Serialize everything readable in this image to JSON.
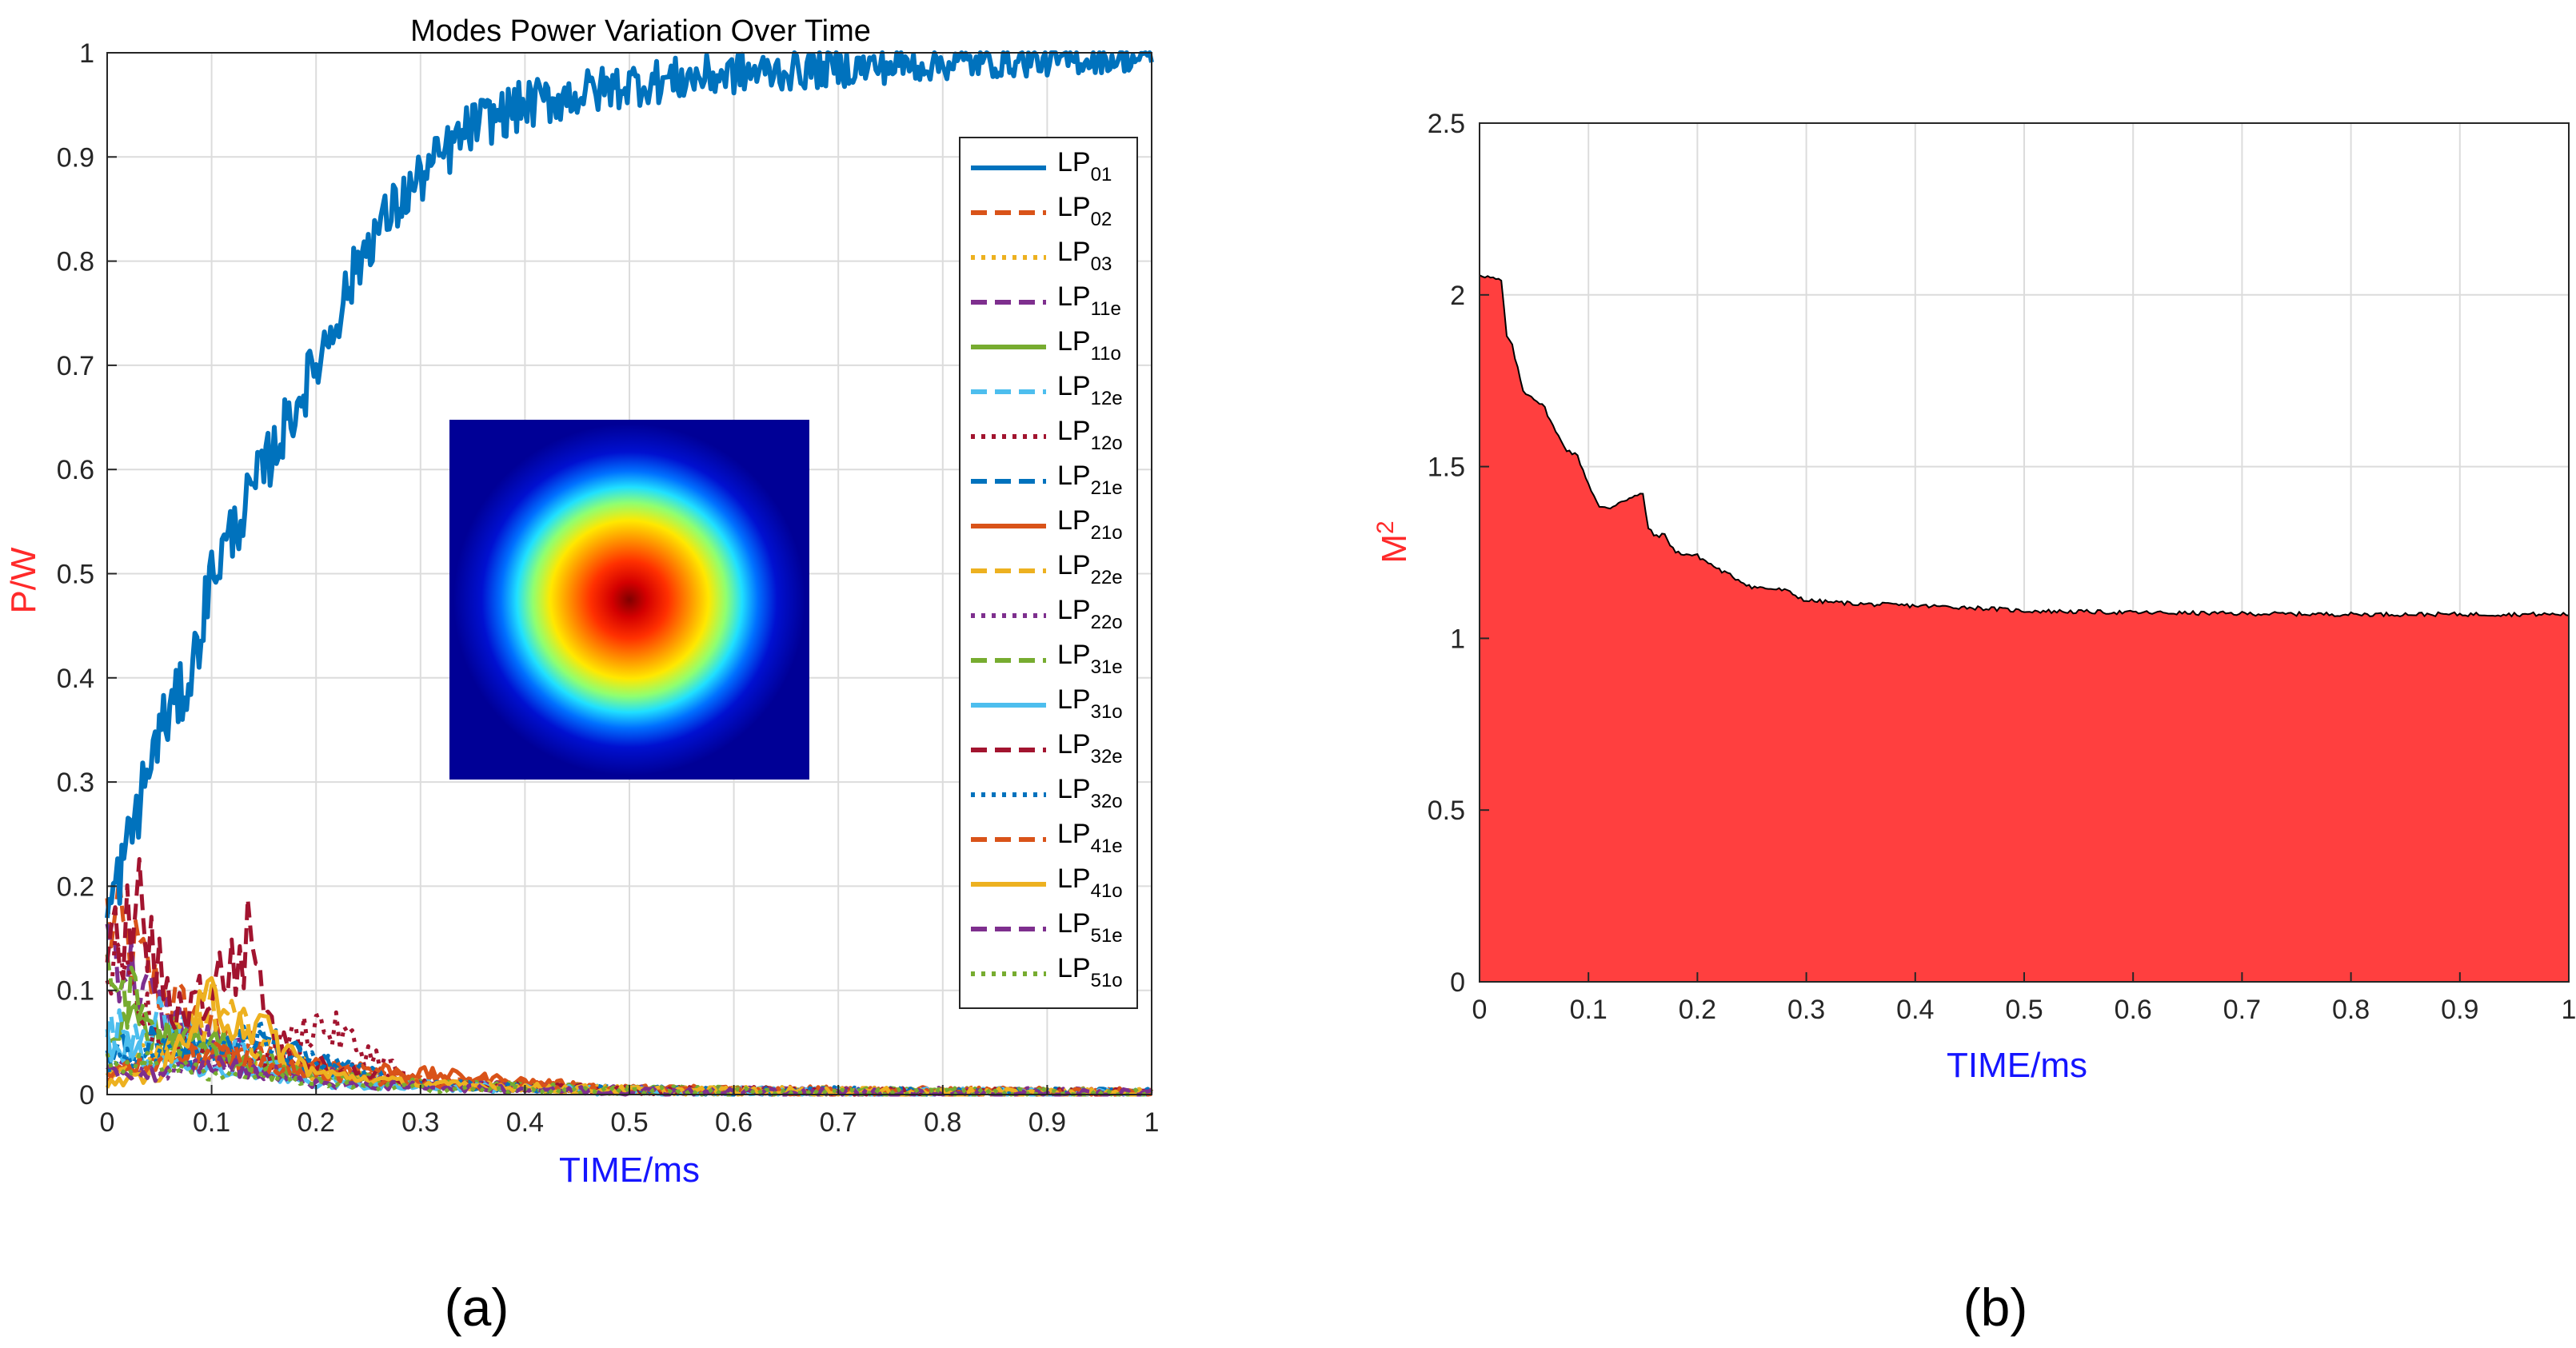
{
  "chart_data": [
    {
      "type": "line",
      "panel_label": "(a)",
      "title": "Modes Power Variation Over Time",
      "xlabel": "TIME/ms",
      "ylabel": "P/W",
      "xlim": [
        0,
        1
      ],
      "ylim": [
        0,
        1
      ],
      "xticks": [
        0,
        0.1,
        0.2,
        0.3,
        0.4,
        0.5,
        0.6,
        0.7,
        0.8,
        0.9,
        1
      ],
      "yticks": [
        0,
        0.1,
        0.2,
        0.3,
        0.4,
        0.5,
        0.6,
        0.7,
        0.8,
        0.9,
        1
      ],
      "xtick_labels": [
        "0",
        "0.1",
        "0.2",
        "0.3",
        "0.4",
        "0.5",
        "0.6",
        "0.7",
        "0.8",
        "0.9",
        "1"
      ],
      "ytick_labels": [
        "0",
        "0.1",
        "0.2",
        "0.3",
        "0.4",
        "0.5",
        "0.6",
        "0.7",
        "0.8",
        "0.9",
        "1"
      ],
      "grid": true,
      "legend_position": "right",
      "inset": "beam intensity profile (LP01, jet colormap)",
      "series": [
        {
          "name": "LP",
          "sub": "01",
          "color": "#0072BD",
          "dash": "solid",
          "x": [
            0,
            0.02,
            0.05,
            0.08,
            0.1,
            0.15,
            0.2,
            0.25,
            0.3,
            0.35,
            0.4,
            0.45,
            0.5,
            0.6,
            0.7,
            0.8,
            0.9,
            1.0
          ],
          "values": [
            0.17,
            0.24,
            0.35,
            0.4,
            0.5,
            0.6,
            0.7,
            0.82,
            0.88,
            0.93,
            0.95,
            0.96,
            0.97,
            0.98,
            0.985,
            0.99,
            0.992,
            0.995
          ]
        },
        {
          "name": "LP",
          "sub": "02",
          "color": "#D95319",
          "dash": "dash",
          "x": [
            0,
            0.05,
            0.1,
            0.15,
            0.2,
            0.3,
            0.5,
            1.0
          ],
          "values": [
            0.17,
            0.1,
            0.06,
            0.04,
            0.03,
            0.015,
            0.005,
            0.002
          ]
        },
        {
          "name": "LP",
          "sub": "03",
          "color": "#EDB120",
          "dash": "dot",
          "x": [
            0,
            0.05,
            0.1,
            0.15,
            0.2,
            0.3,
            0.5,
            1.0
          ],
          "values": [
            0.03,
            0.05,
            0.04,
            0.03,
            0.02,
            0.01,
            0.004,
            0.002
          ]
        },
        {
          "name": "LP",
          "sub": "11e",
          "color": "#7E2F8E",
          "dash": "dash",
          "x": [
            0,
            0.05,
            0.1,
            0.15,
            0.2,
            0.3,
            0.5,
            1.0
          ],
          "values": [
            0.15,
            0.08,
            0.05,
            0.03,
            0.02,
            0.01,
            0.004,
            0.001
          ]
        },
        {
          "name": "LP",
          "sub": "11o",
          "color": "#77AC30",
          "dash": "solid",
          "x": [
            0,
            0.05,
            0.1,
            0.15,
            0.2,
            0.3,
            0.5,
            1.0
          ],
          "values": [
            0.08,
            0.06,
            0.05,
            0.03,
            0.02,
            0.01,
            0.004,
            0.002
          ]
        },
        {
          "name": "LP",
          "sub": "12e",
          "color": "#4DBEEE",
          "dash": "dash",
          "x": [
            0,
            0.05,
            0.1,
            0.15,
            0.2,
            0.3,
            0.5,
            1.0
          ],
          "values": [
            0.06,
            0.07,
            0.05,
            0.03,
            0.02,
            0.01,
            0.004,
            0.001
          ]
        },
        {
          "name": "LP",
          "sub": "12o",
          "color": "#A2142F",
          "dash": "dot",
          "x": [
            0,
            0.05,
            0.1,
            0.15,
            0.2,
            0.3,
            0.5,
            1.0
          ],
          "values": [
            0.12,
            0.06,
            0.04,
            0.03,
            0.07,
            0.01,
            0.004,
            0.001
          ]
        },
        {
          "name": "LP",
          "sub": "21e",
          "color": "#0072BD",
          "dash": "dash",
          "x": [
            0,
            0.05,
            0.1,
            0.15,
            0.2,
            0.3,
            0.5,
            1.0
          ],
          "values": [
            0.04,
            0.05,
            0.04,
            0.05,
            0.03,
            0.01,
            0.004,
            0.002
          ]
        },
        {
          "name": "LP",
          "sub": "21o",
          "color": "#D95319",
          "dash": "solid",
          "x": [
            0,
            0.05,
            0.1,
            0.15,
            0.2,
            0.3,
            0.5,
            1.0
          ],
          "values": [
            0.02,
            0.03,
            0.04,
            0.02,
            0.03,
            0.02,
            0.005,
            0.002
          ]
        },
        {
          "name": "LP",
          "sub": "22e",
          "color": "#EDB120",
          "dash": "dash",
          "x": [
            0,
            0.05,
            0.1,
            0.15,
            0.2,
            0.3,
            0.5,
            1.0
          ],
          "values": [
            0.02,
            0.04,
            0.08,
            0.05,
            0.02,
            0.01,
            0.004,
            0.001
          ]
        },
        {
          "name": "LP",
          "sub": "22o",
          "color": "#7E2F8E",
          "dash": "dot",
          "x": [
            0,
            0.05,
            0.1,
            0.15,
            0.2,
            0.3,
            0.5,
            1.0
          ],
          "values": [
            0.03,
            0.02,
            0.03,
            0.02,
            0.02,
            0.01,
            0.004,
            0.002
          ]
        },
        {
          "name": "LP",
          "sub": "31e",
          "color": "#77AC30",
          "dash": "dash",
          "x": [
            0,
            0.05,
            0.1,
            0.15,
            0.2,
            0.3,
            0.5,
            1.0
          ],
          "values": [
            0.12,
            0.06,
            0.04,
            0.02,
            0.02,
            0.01,
            0.004,
            0.001
          ]
        },
        {
          "name": "LP",
          "sub": "31o",
          "color": "#4DBEEE",
          "dash": "solid",
          "x": [
            0,
            0.05,
            0.1,
            0.15,
            0.2,
            0.3,
            0.5,
            1.0
          ],
          "values": [
            0.05,
            0.03,
            0.02,
            0.02,
            0.01,
            0.008,
            0.003,
            0.001
          ]
        },
        {
          "name": "LP",
          "sub": "32e",
          "color": "#A2142F",
          "dash": "dash",
          "x": [
            0,
            0.03,
            0.06,
            0.1,
            0.14,
            0.16,
            0.2,
            0.3,
            0.5,
            1.0
          ],
          "values": [
            0.12,
            0.18,
            0.08,
            0.1,
            0.15,
            0.05,
            0.03,
            0.01,
            0.004,
            0.001
          ]
        },
        {
          "name": "LP",
          "sub": "32o",
          "color": "#0072BD",
          "dash": "dot",
          "x": [
            0,
            0.05,
            0.1,
            0.15,
            0.2,
            0.3,
            0.5,
            1.0
          ],
          "values": [
            0.03,
            0.04,
            0.03,
            0.06,
            0.03,
            0.01,
            0.004,
            0.002
          ]
        },
        {
          "name": "LP",
          "sub": "41e",
          "color": "#D95319",
          "dash": "dash",
          "x": [
            0,
            0.05,
            0.1,
            0.15,
            0.2,
            0.3,
            0.5,
            1.0
          ],
          "values": [
            0.02,
            0.03,
            0.04,
            0.03,
            0.02,
            0.01,
            0.004,
            0.001
          ]
        },
        {
          "name": "LP",
          "sub": "41o",
          "color": "#EDB120",
          "dash": "solid",
          "x": [
            0,
            0.05,
            0.1,
            0.15,
            0.2,
            0.3,
            0.5,
            1.0
          ],
          "values": [
            0.01,
            0.02,
            0.09,
            0.06,
            0.02,
            0.01,
            0.004,
            0.001
          ]
        },
        {
          "name": "LP",
          "sub": "51e",
          "color": "#7E2F8E",
          "dash": "dash",
          "x": [
            0,
            0.05,
            0.1,
            0.15,
            0.2,
            0.3,
            0.5,
            1.0
          ],
          "values": [
            0.02,
            0.02,
            0.03,
            0.02,
            0.01,
            0.008,
            0.003,
            0.001
          ]
        },
        {
          "name": "LP",
          "sub": "51o",
          "color": "#77AC30",
          "dash": "dot",
          "x": [
            0,
            0.05,
            0.1,
            0.15,
            0.2,
            0.3,
            0.5,
            1.0
          ],
          "values": [
            0.03,
            0.03,
            0.02,
            0.02,
            0.01,
            0.006,
            0.003,
            0.001
          ]
        }
      ]
    },
    {
      "type": "area",
      "panel_label": "(b)",
      "title": "",
      "xlabel": "TIME/ms",
      "ylabel": "M",
      "ylabel_sup": "2",
      "xlim": [
        0,
        1
      ],
      "ylim": [
        0,
        2.5
      ],
      "xticks": [
        0,
        0.1,
        0.2,
        0.3,
        0.4,
        0.5,
        0.6,
        0.7,
        0.8,
        0.9,
        1
      ],
      "yticks": [
        0,
        0.5,
        1,
        1.5,
        2,
        2.5
      ],
      "xtick_labels": [
        "0",
        "0.1",
        "0.2",
        "0.3",
        "0.4",
        "0.5",
        "0.6",
        "0.7",
        "0.8",
        "0.9",
        "1"
      ],
      "ytick_labels": [
        "0",
        "0.5",
        "1",
        "1.5",
        "2",
        "2.5"
      ],
      "grid": true,
      "fill_color": "#FF3F3F",
      "x": [
        0,
        0.01,
        0.02,
        0.025,
        0.03,
        0.04,
        0.05,
        0.06,
        0.07,
        0.08,
        0.09,
        0.1,
        0.11,
        0.12,
        0.13,
        0.14,
        0.15,
        0.155,
        0.16,
        0.17,
        0.18,
        0.2,
        0.22,
        0.25,
        0.28,
        0.3,
        0.35,
        0.4,
        0.45,
        0.5,
        0.6,
        0.7,
        0.8,
        0.9,
        1.0
      ],
      "values": [
        2.06,
        2.05,
        2.04,
        1.88,
        1.85,
        1.72,
        1.7,
        1.67,
        1.6,
        1.55,
        1.53,
        1.45,
        1.38,
        1.38,
        1.4,
        1.41,
        1.42,
        1.32,
        1.3,
        1.3,
        1.25,
        1.24,
        1.2,
        1.15,
        1.14,
        1.11,
        1.1,
        1.095,
        1.09,
        1.08,
        1.075,
        1.072,
        1.07,
        1.07,
        1.07
      ]
    }
  ]
}
